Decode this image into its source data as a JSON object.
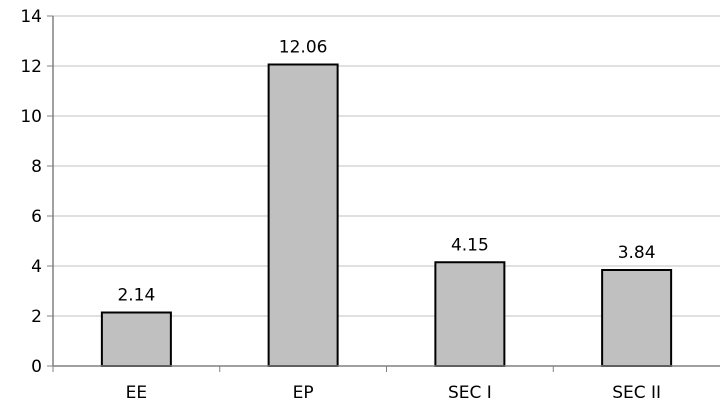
{
  "chart_data": {
    "type": "bar",
    "title": "",
    "xlabel": "",
    "ylabel": "",
    "categories": [
      "EE",
      "EP",
      "SEC I",
      "SEC II"
    ],
    "values": [
      2.14,
      12.06,
      4.15,
      3.84
    ],
    "data_labels": [
      "2.14",
      "12.06",
      "4.15",
      "3.84"
    ],
    "ylim": [
      0,
      14
    ],
    "yticks": [
      0,
      2,
      4,
      6,
      8,
      10,
      12,
      14
    ],
    "grid": true,
    "legend": "none",
    "colors": {
      "bar_fill": "#c0c0c0",
      "bar_stroke": "#000000",
      "grid": "#c0c0c0",
      "axis": "#808080"
    }
  }
}
